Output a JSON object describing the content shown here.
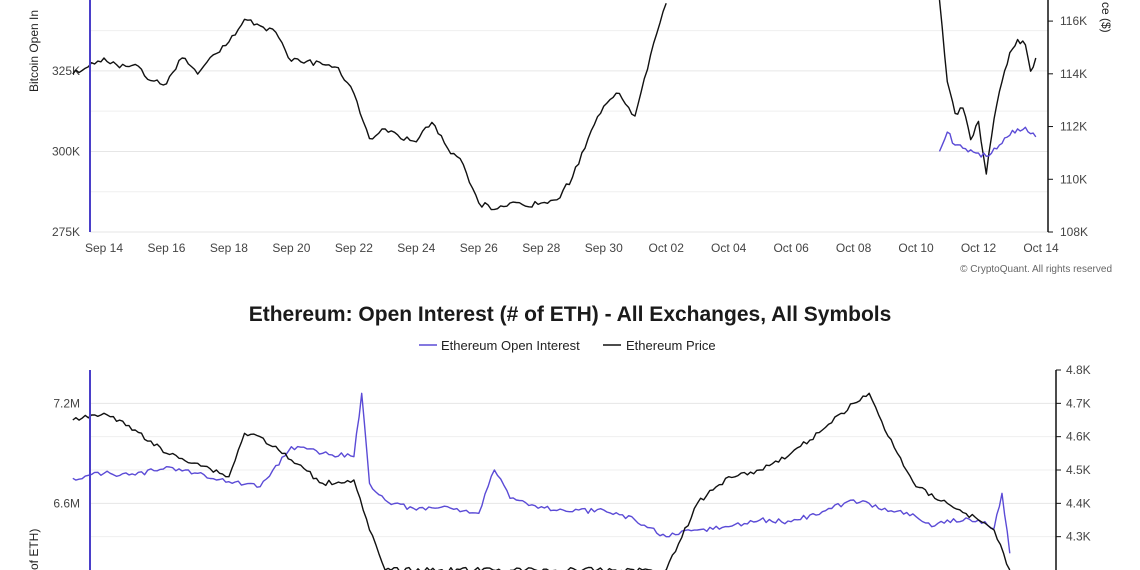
{
  "chart_data": [
    {
      "type": "line",
      "title": "",
      "ylabel": "Bitcoin Open In",
      "y2label": "ce ($)",
      "ylim": [
        275000,
        347000
      ],
      "y2lim": [
        108000,
        116800
      ],
      "yticks": [
        {
          "v": 275000,
          "label": "275K"
        },
        {
          "v": 300000,
          "label": "300K"
        },
        {
          "v": 325000,
          "label": "325K"
        }
      ],
      "y2ticks": [
        {
          "v": 108000,
          "label": "108K"
        },
        {
          "v": 110000,
          "label": "110K"
        },
        {
          "v": 112000,
          "label": "112K"
        },
        {
          "v": 114000,
          "label": "114K"
        },
        {
          "v": 116000,
          "label": "116K"
        }
      ],
      "xticks": [
        "Sep 14",
        "Sep 16",
        "Sep 18",
        "Sep 20",
        "Sep 22",
        "Sep 24",
        "Sep 26",
        "Sep 28",
        "Sep 30",
        "Oct 02",
        "Oct 04",
        "Oct 06",
        "Oct 08",
        "Oct 10",
        "Oct 12",
        "Oct 14"
      ],
      "x_start": "2025-09-13",
      "x_end": "2025-10-14",
      "grid": true,
      "copyright": "© CryptoQuant. All rights reserved",
      "series": [
        {
          "name": "",
          "color": "#111111",
          "axis": "left",
          "points": [
            [
              "2025-09-13",
              324000
            ],
            [
              "2025-09-14",
              329000
            ],
            [
              "2025-09-14T12",
              326000
            ],
            [
              "2025-09-15",
              327000
            ],
            [
              "2025-09-15T12",
              322000
            ],
            [
              "2025-09-16",
              321000
            ],
            [
              "2025-09-16T12",
              329000
            ],
            [
              "2025-09-17",
              324000
            ],
            [
              "2025-09-17T12",
              330000
            ],
            [
              "2025-09-18",
              334000
            ],
            [
              "2025-09-18T12",
              341000
            ],
            [
              "2025-09-19",
              339000
            ],
            [
              "2025-09-19T12",
              337000
            ],
            [
              "2025-09-20",
              328000
            ],
            [
              "2025-09-20T12",
              328000
            ],
            [
              "2025-09-21",
              327000
            ],
            [
              "2025-09-21T12",
              326000
            ],
            [
              "2025-09-22",
              318000
            ],
            [
              "2025-09-22T12",
              304000
            ],
            [
              "2025-09-23",
              307000
            ],
            [
              "2025-09-23T12",
              304000
            ],
            [
              "2025-09-24",
              303000
            ],
            [
              "2025-09-24T12",
              309000
            ],
            [
              "2025-09-25",
              301000
            ],
            [
              "2025-09-25T12",
              296000
            ],
            [
              "2025-09-26",
              284000
            ],
            [
              "2025-09-26T12",
              282000
            ],
            [
              "2025-09-27",
              284000
            ],
            [
              "2025-09-27T12",
              283000
            ],
            [
              "2025-09-28",
              284000
            ],
            [
              "2025-09-28T12",
              285000
            ],
            [
              "2025-09-29",
              292000
            ],
            [
              "2025-09-29T12",
              304000
            ],
            [
              "2025-09-30",
              314000
            ],
            [
              "2025-09-30T12",
              318000
            ],
            [
              "2025-10-01",
              311000
            ],
            [
              "2025-10-01T12",
              330000
            ],
            [
              "2025-10-02",
              346000
            ]
          ]
        },
        {
          "name": "",
          "color": "#111111",
          "axis": "right",
          "points": [
            [
              "2025-10-10T18",
              116800
            ],
            [
              "2025-10-11",
              113700
            ],
            [
              "2025-10-11T06",
              112500
            ],
            [
              "2025-10-11T12",
              112700
            ],
            [
              "2025-10-11T18",
              111500
            ],
            [
              "2025-10-12",
              112200
            ],
            [
              "2025-10-12T06",
              110200
            ],
            [
              "2025-10-12T12",
              112300
            ],
            [
              "2025-10-12T18",
              113700
            ],
            [
              "2025-10-13",
              114800
            ],
            [
              "2025-10-13T06",
              115300
            ],
            [
              "2025-10-13T12",
              115100
            ],
            [
              "2025-10-13T16",
              114100
            ],
            [
              "2025-10-13T20",
              114600
            ]
          ]
        },
        {
          "name": "",
          "color": "#5b4bd6",
          "axis": "left",
          "points": [
            [
              "2025-10-10T18",
              300000
            ],
            [
              "2025-10-11",
              306000
            ],
            [
              "2025-10-11T06",
              302000
            ],
            [
              "2025-10-11T12",
              301000
            ],
            [
              "2025-10-11T18",
              300500
            ],
            [
              "2025-10-12",
              299500
            ],
            [
              "2025-10-12T06",
              298500
            ],
            [
              "2025-10-12T12",
              301000
            ],
            [
              "2025-10-12T18",
              302500
            ],
            [
              "2025-10-13",
              305000
            ],
            [
              "2025-10-13T06",
              307000
            ],
            [
              "2025-10-13T12",
              307500
            ],
            [
              "2025-10-13T16",
              305500
            ],
            [
              "2025-10-13T20",
              304500
            ]
          ]
        }
      ]
    },
    {
      "type": "line",
      "title": "Ethereum: Open Interest (# of ETH) - All Exchanges, All Symbols",
      "legend": [
        {
          "name": "Ethereum Open Interest",
          "color": "#5b4bd6"
        },
        {
          "name": "Ethereum Price",
          "color": "#111111"
        }
      ],
      "ylabel": "of ETH)",
      "ylim": [
        6.2,
        7.4
      ],
      "y2lim": [
        4.2,
        4.8
      ],
      "yticks": [
        {
          "v": 6.6,
          "label": "6.6M"
        },
        {
          "v": 7.2,
          "label": "7.2M"
        }
      ],
      "y2ticks": [
        {
          "v": 4.3,
          "label": "4.3K"
        },
        {
          "v": 4.4,
          "label": "4.4K"
        },
        {
          "v": 4.5,
          "label": "4.5K"
        },
        {
          "v": 4.6,
          "label": "4.6K"
        },
        {
          "v": 4.7,
          "label": "4.7K"
        },
        {
          "v": 4.8,
          "label": "4.8K"
        }
      ],
      "x_start": "2025-09-13",
      "x_end": "2025-10-14",
      "series": [
        {
          "name": "Ethereum Open Interest",
          "color": "#5b4bd6",
          "axis": "left",
          "unit": "M",
          "points": [
            [
              "2025-09-13",
              6.75
            ],
            [
              "2025-09-14",
              6.78
            ],
            [
              "2025-09-15",
              6.77
            ],
            [
              "2025-09-16",
              6.82
            ],
            [
              "2025-09-17",
              6.78
            ],
            [
              "2025-09-18",
              6.73
            ],
            [
              "2025-09-19",
              6.7
            ],
            [
              "2025-09-20",
              6.94
            ],
            [
              "2025-09-21",
              6.9
            ],
            [
              "2025-09-22",
              6.88
            ],
            [
              "2025-09-22T06",
              7.26
            ],
            [
              "2025-09-22T12",
              6.72
            ],
            [
              "2025-09-23",
              6.62
            ],
            [
              "2025-09-24",
              6.56
            ],
            [
              "2025-09-25",
              6.58
            ],
            [
              "2025-09-26",
              6.54
            ],
            [
              "2025-09-26T12",
              6.8
            ],
            [
              "2025-09-27",
              6.63
            ],
            [
              "2025-09-28",
              6.58
            ],
            [
              "2025-09-29",
              6.55
            ],
            [
              "2025-09-30",
              6.56
            ],
            [
              "2025-10-01",
              6.5
            ],
            [
              "2025-10-02",
              6.4
            ],
            [
              "2025-10-03",
              6.44
            ],
            [
              "2025-10-04",
              6.46
            ],
            [
              "2025-10-05",
              6.5
            ],
            [
              "2025-10-06",
              6.49
            ],
            [
              "2025-10-07",
              6.55
            ],
            [
              "2025-10-08",
              6.62
            ],
            [
              "2025-10-09",
              6.57
            ],
            [
              "2025-10-10",
              6.52
            ],
            [
              "2025-10-10T12",
              6.46
            ],
            [
              "2025-10-11",
              6.5
            ],
            [
              "2025-10-12",
              6.5
            ],
            [
              "2025-10-12T12",
              6.45
            ],
            [
              "2025-10-12T18",
              6.66
            ],
            [
              "2025-10-13",
              6.3
            ]
          ]
        },
        {
          "name": "Ethereum Price",
          "color": "#111111",
          "axis": "right",
          "unit": "K",
          "points": [
            [
              "2025-09-13",
              4.65
            ],
            [
              "2025-09-14",
              4.67
            ],
            [
              "2025-09-15",
              4.62
            ],
            [
              "2025-09-16",
              4.55
            ],
            [
              "2025-09-17",
              4.52
            ],
            [
              "2025-09-18",
              4.48
            ],
            [
              "2025-09-18T12",
              4.61
            ],
            [
              "2025-09-19",
              4.6
            ],
            [
              "2025-09-20",
              4.53
            ],
            [
              "2025-09-21",
              4.46
            ],
            [
              "2025-09-22",
              4.47
            ],
            [
              "2025-09-22T12",
              4.32
            ],
            [
              "2025-09-23",
              4.2
            ],
            [
              "2025-10-02",
              4.2
            ],
            [
              "2025-10-03",
              4.4
            ],
            [
              "2025-10-04",
              4.48
            ],
            [
              "2025-10-05",
              4.5
            ],
            [
              "2025-10-06",
              4.55
            ],
            [
              "2025-10-07",
              4.62
            ],
            [
              "2025-10-08",
              4.7
            ],
            [
              "2025-10-08T12",
              4.73
            ],
            [
              "2025-10-09",
              4.62
            ],
            [
              "2025-10-10",
              4.45
            ],
            [
              "2025-10-11",
              4.4
            ],
            [
              "2025-10-12",
              4.35
            ],
            [
              "2025-10-12T12",
              4.32
            ],
            [
              "2025-10-13",
              4.2
            ]
          ]
        }
      ]
    }
  ]
}
